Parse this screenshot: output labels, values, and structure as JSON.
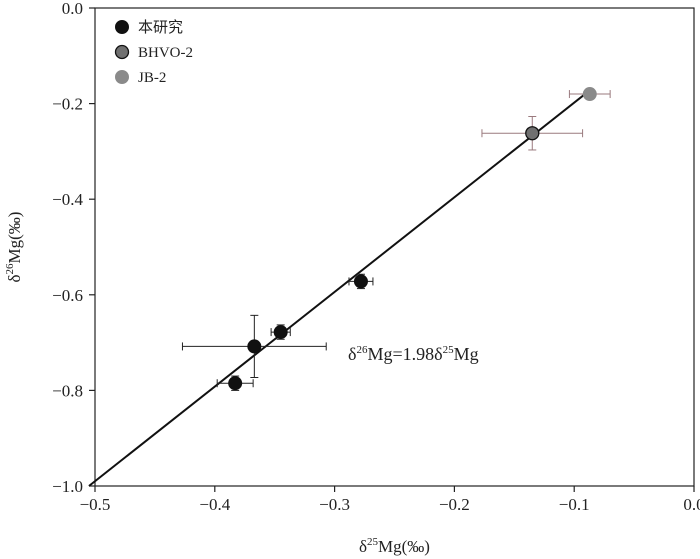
{
  "chart_data": {
    "type": "scatter",
    "x_label_parts": {
      "prefix": "δ",
      "sup": "25",
      "suffix": "Mg(‰)"
    },
    "y_label_parts": {
      "prefix": "δ",
      "sup": "26",
      "suffix": "Mg(‰)"
    },
    "xlim": [
      -0.5,
      0.0
    ],
    "ylim": [
      -1.0,
      0.0
    ],
    "x_ticks": [
      -0.5,
      -0.4,
      -0.3,
      -0.2,
      -0.1,
      0.0
    ],
    "x_tick_labels": [
      "−0.5",
      "−0.4",
      "−0.3",
      "−0.2",
      "−0.1",
      "0.0"
    ],
    "y_ticks": [
      0.0,
      -0.2,
      -0.4,
      -0.6,
      -0.8,
      -1.0
    ],
    "y_tick_labels": [
      "0.0",
      "−0.2",
      "−0.4",
      "−0.6",
      "−0.8",
      "−1.0"
    ],
    "legend_position": "top-left",
    "series": [
      {
        "name": "本研究",
        "color": "#111111",
        "points": [
          {
            "x": -0.383,
            "y": -0.785,
            "xerr": 0.015,
            "yerr": 0.015
          },
          {
            "x": -0.367,
            "y": -0.708,
            "xerr": 0.06,
            "yerr": 0.065
          },
          {
            "x": -0.345,
            "y": -0.678,
            "xerr": 0.008,
            "yerr": 0.015
          },
          {
            "x": -0.278,
            "y": -0.572,
            "xerr": 0.01,
            "yerr": 0.015
          }
        ]
      },
      {
        "name": "BHVO-2",
        "color": "#707070",
        "points": [
          {
            "x": -0.135,
            "y": -0.262,
            "xerr": 0.042,
            "yerr": 0.035
          }
        ]
      },
      {
        "name": "JB-2",
        "color": "#8a8a8a",
        "points": [
          {
            "x": -0.087,
            "y": -0.18,
            "xerr": 0.017,
            "yerr": 0.01
          }
        ]
      }
    ],
    "fit_line": {
      "slope": 1.98,
      "equation_parts": {
        "a": "δ",
        "a_sup": "26",
        "b": "Mg=1.98δ",
        "b_sup": "25",
        "c": "Mg"
      }
    }
  }
}
